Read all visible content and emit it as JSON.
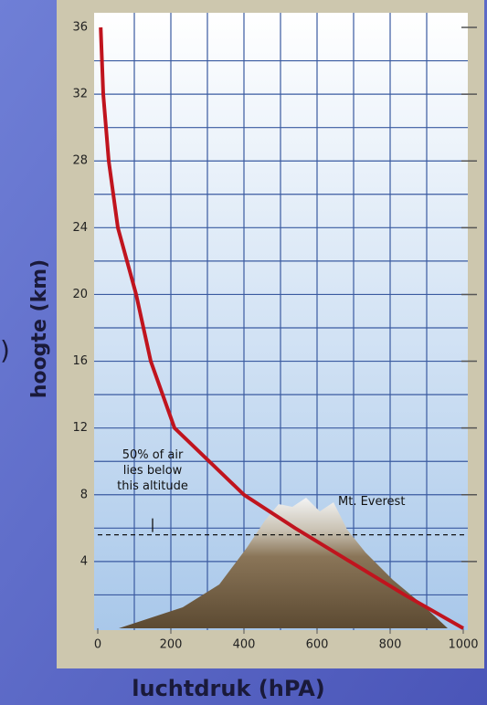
{
  "chart_data": {
    "type": "line",
    "x": [
      1000,
      840,
      690,
      540,
      400,
      210,
      145,
      105,
      55,
      30,
      15,
      8
    ],
    "values": [
      0,
      2,
      4,
      6,
      8,
      12,
      16,
      20,
      24,
      28,
      32,
      36
    ],
    "color": "#c0141e",
    "xlim": [
      0,
      1000
    ],
    "ylim": [
      0,
      36
    ],
    "xticks": [
      0,
      200,
      400,
      600,
      800,
      1000
    ],
    "yticks": [
      4,
      8,
      12,
      16,
      20,
      24,
      28,
      32,
      36
    ],
    "x_grid": [
      100,
      200,
      300,
      400,
      500,
      600,
      700,
      800,
      900
    ],
    "y_grid": [
      2,
      4,
      6,
      8,
      10,
      12,
      14,
      16,
      18,
      20,
      22,
      24,
      26,
      28,
      30,
      32,
      34
    ],
    "grid": true,
    "xlabel": "luchtdruk (hPA)",
    "ylabel": "hoogte (km)",
    "half_air_altitude": 5.6,
    "half_air_note": [
      "50% of air",
      "lies below",
      "this altitude"
    ],
    "everest_label": "Mt. Everest",
    "fragment": ")"
  }
}
